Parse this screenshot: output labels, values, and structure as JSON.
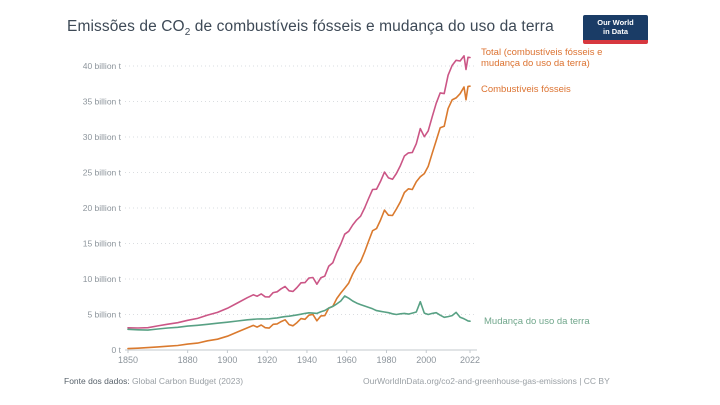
{
  "header": {
    "title_prefix": "Emissões de CO",
    "title_sub": "2",
    "title_suffix": " de combustíveis fósseis e mudança do uso da terra",
    "logo": {
      "line1": "Our World",
      "line2": "in Data",
      "bg_color": "#1a3c66",
      "stripe_color": "#d7383f",
      "text_color": "#ffffff"
    }
  },
  "legend": {
    "total": {
      "label_line1": "Total (combustíveis fósseis e",
      "label_line2": "mudança do uso da terra)",
      "label_color": "#dc7230"
    },
    "fossil": {
      "label": "Combustíveis fósseis",
      "label_color": "#dc7230"
    },
    "land": {
      "label": "Mudança do uso da terra",
      "label_color": "#71a78c"
    }
  },
  "footer": {
    "source_prefix": "Fonte dos dados:",
    "source_name": "Global Carbon Budget (2023)",
    "source_prefix_color": "#58626b",
    "source_name_color": "#9aa0a5",
    "attribution": "OurWorldInData.org/co2-and-greenhouse-gas-emissions | CC BY",
    "attribution_color": "#9aa0a5"
  },
  "chart_data": {
    "type": "line",
    "title": "Emissões de CO2 de combustíveis fósseis e mudança do uso da terra",
    "unit": "billion t",
    "xlabel": "",
    "ylabel": "",
    "xlim": [
      1850,
      2022
    ],
    "ylim": [
      0,
      40
    ],
    "grid": "horizontal dotted",
    "legend_position": "right, colored text next to line ends",
    "x": [
      1850,
      1855,
      1860,
      1865,
      1870,
      1875,
      1880,
      1885,
      1890,
      1895,
      1900,
      1905,
      1910,
      1913,
      1915,
      1917,
      1919,
      1921,
      1923,
      1925,
      1927,
      1929,
      1931,
      1933,
      1935,
      1937,
      1939,
      1941,
      1943,
      1945,
      1947,
      1949,
      1951,
      1953,
      1955,
      1957,
      1959,
      1961,
      1963,
      1965,
      1967,
      1969,
      1971,
      1973,
      1975,
      1977,
      1979,
      1981,
      1983,
      1985,
      1987,
      1989,
      1991,
      1993,
      1995,
      1997,
      1999,
      2001,
      2003,
      2005,
      2007,
      2009,
      2011,
      2013,
      2015,
      2017,
      2019,
      2020,
      2021,
      2022
    ],
    "series": [
      {
        "name": "Total (combustíveis fósseis e mudança do uso da terra)",
        "color": "#cb5686",
        "values": [
          3.12,
          3.1,
          3.14,
          3.39,
          3.63,
          3.84,
          4.19,
          4.45,
          4.92,
          5.3,
          5.87,
          6.62,
          7.37,
          7.78,
          7.58,
          7.9,
          7.5,
          7.48,
          8.08,
          8.2,
          8.62,
          8.95,
          8.34,
          8.25,
          8.8,
          9.46,
          9.49,
          10.14,
          10.21,
          9.27,
          10.18,
          10.41,
          11.82,
          12.28,
          13.75,
          14.93,
          16.31,
          16.72,
          17.6,
          18.33,
          18.85,
          20.0,
          21.34,
          22.6,
          22.65,
          23.75,
          25.05,
          24.24,
          24.04,
          24.86,
          25.97,
          27.33,
          27.76,
          27.81,
          29.05,
          31.19,
          30.04,
          30.86,
          32.85,
          34.74,
          36.21,
          36.11,
          38.7,
          40.07,
          40.8,
          40.7,
          41.44,
          39.51,
          41.22,
          41.2
        ]
      },
      {
        "name": "Combustíveis fósseis",
        "color": "#da7a2e",
        "values": [
          0.2,
          0.26,
          0.34,
          0.43,
          0.53,
          0.64,
          0.83,
          0.97,
          1.3,
          1.52,
          1.95,
          2.54,
          3.11,
          3.46,
          3.22,
          3.52,
          3.14,
          3.08,
          3.62,
          3.68,
          4.0,
          4.25,
          3.58,
          3.41,
          3.86,
          4.42,
          4.33,
          4.9,
          5.01,
          4.11,
          4.8,
          4.85,
          5.92,
          6.14,
          7.25,
          8.03,
          8.71,
          9.42,
          10.7,
          11.73,
          12.45,
          13.8,
          15.34,
          16.8,
          17.1,
          18.3,
          19.7,
          18.99,
          18.94,
          19.86,
          20.87,
          22.18,
          22.71,
          22.61,
          23.7,
          24.39,
          24.84,
          25.86,
          27.7,
          29.49,
          31.31,
          31.51,
          34.0,
          35.22,
          35.5,
          36.1,
          37.04,
          35.26,
          37.12,
          37.15
        ]
      },
      {
        "name": "Mudança do uso da terra",
        "color": "#58a184",
        "values": [
          2.92,
          2.84,
          2.8,
          2.96,
          3.1,
          3.2,
          3.36,
          3.48,
          3.62,
          3.78,
          3.92,
          4.08,
          4.26,
          4.32,
          4.36,
          4.38,
          4.36,
          4.4,
          4.46,
          4.52,
          4.62,
          4.7,
          4.76,
          4.84,
          4.94,
          5.04,
          5.16,
          5.24,
          5.2,
          5.16,
          5.38,
          5.56,
          5.9,
          6.14,
          6.5,
          6.9,
          7.6,
          7.3,
          6.9,
          6.6,
          6.4,
          6.2,
          6.0,
          5.8,
          5.55,
          5.45,
          5.35,
          5.25,
          5.1,
          5.0,
          5.1,
          5.15,
          5.05,
          5.2,
          5.35,
          6.8,
          5.2,
          5.0,
          5.15,
          5.25,
          4.9,
          4.6,
          4.7,
          4.85,
          5.3,
          4.6,
          4.4,
          4.25,
          4.1,
          4.05
        ]
      }
    ],
    "x_ticks": [
      {
        "value": 1850,
        "label": "1850"
      },
      {
        "value": 1880,
        "label": "1880"
      },
      {
        "value": 1900,
        "label": "1900"
      },
      {
        "value": 1920,
        "label": "1920"
      },
      {
        "value": 1940,
        "label": "1940"
      },
      {
        "value": 1960,
        "label": "1960"
      },
      {
        "value": 1980,
        "label": "1980"
      },
      {
        "value": 2000,
        "label": "2000"
      },
      {
        "value": 2022,
        "label": "2022"
      }
    ],
    "y_ticks": [
      {
        "value": 0,
        "label": "0 t"
      },
      {
        "value": 5,
        "label": "5 billion t"
      },
      {
        "value": 10,
        "label": "10 billion t"
      },
      {
        "value": 15,
        "label": "15 billion t"
      },
      {
        "value": 20,
        "label": "20 billion t"
      },
      {
        "value": 25,
        "label": "25 billion t"
      },
      {
        "value": 30,
        "label": "30 billion t"
      },
      {
        "value": 35,
        "label": "35 billion t"
      },
      {
        "value": 40,
        "label": "40 billion t"
      }
    ],
    "axis_color": "#c3c9ce",
    "gridline_color": "#dadde0",
    "tick_label_color": "#8d959c"
  }
}
